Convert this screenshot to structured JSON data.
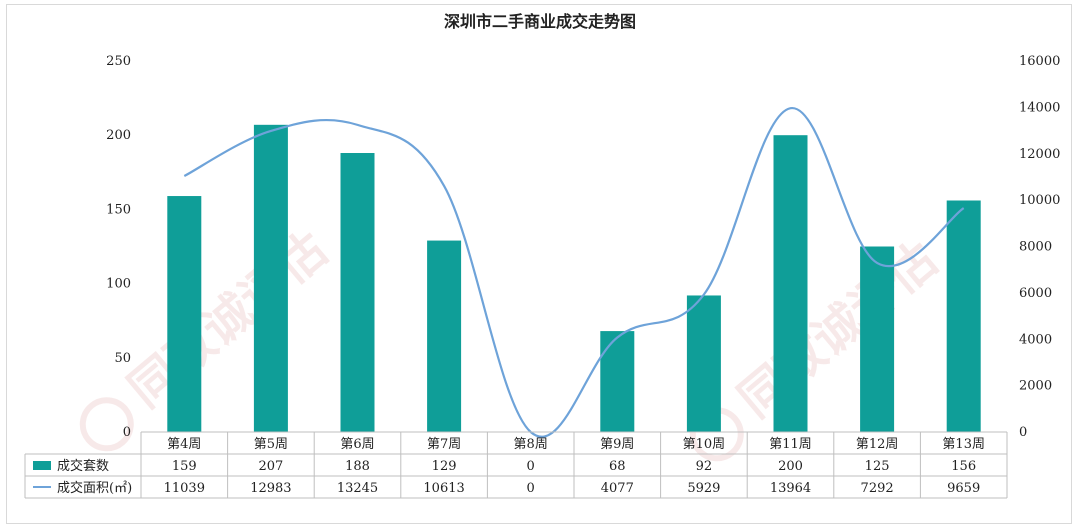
{
  "colors": {
    "bar": "#0f9e98",
    "line": "#6ea3d9",
    "grid": "#bfbfbf",
    "watermark": "#e9c3c3"
  },
  "chart_data": {
    "type": "bar",
    "title": "深圳市二手商业成交走势图",
    "categories": [
      "第4周",
      "第5周",
      "第6周",
      "第7周",
      "第8周",
      "第9周",
      "第10周",
      "第11周",
      "第12周",
      "第13周"
    ],
    "series": [
      {
        "name": "成交套数",
        "type": "bar",
        "axis": "left",
        "values": [
          159,
          207,
          188,
          129,
          0,
          68,
          92,
          200,
          125,
          156
        ]
      },
      {
        "name": "成交面积(㎡)",
        "type": "line",
        "axis": "right",
        "values": [
          11039,
          12983,
          13245,
          10613,
          0,
          4077,
          5929,
          13964,
          7292,
          9659
        ]
      }
    ],
    "y_left": {
      "ylim": [
        0,
        250
      ],
      "ticks": [
        0,
        50,
        100,
        150,
        200,
        250
      ]
    },
    "y_right": {
      "ylim": [
        0,
        16000
      ],
      "ticks": [
        0,
        2000,
        4000,
        6000,
        8000,
        10000,
        12000,
        14000,
        16000
      ]
    },
    "data_table": true,
    "watermark": "同致诚评估 TOCONSULTING"
  }
}
